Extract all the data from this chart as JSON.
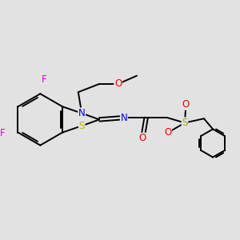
{
  "background_color": "#e2e2e2",
  "bond_color": "#000000",
  "bond_width": 1.4,
  "atom_colors": {
    "F": "#dd00dd",
    "N": "#0000ee",
    "O": "#ee0000",
    "S_thia": "#bbbb00",
    "S_sulf": "#aaaa00"
  },
  "font_size": 8.5,
  "figsize": [
    3.0,
    3.0
  ],
  "dpi": 100,
  "xlim": [
    0,
    10
  ],
  "ylim": [
    0,
    10
  ]
}
